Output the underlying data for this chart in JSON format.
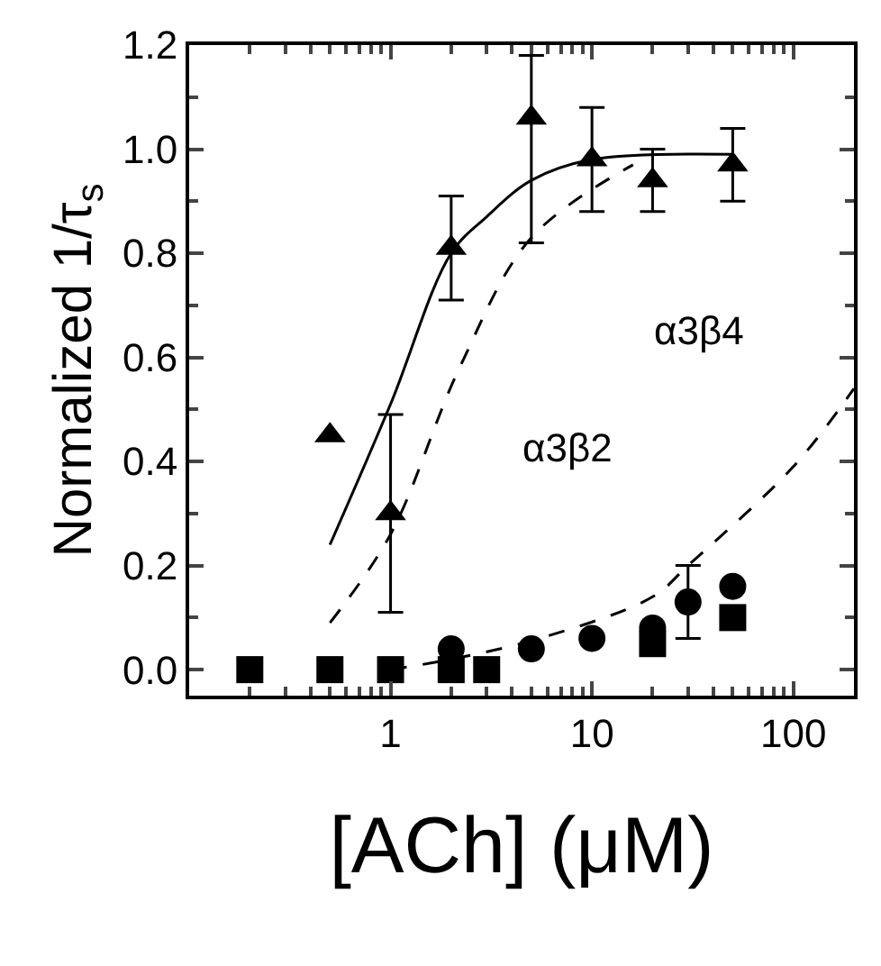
{
  "chart_data": {
    "type": "scatter",
    "xlabel": "[ACh] (μM)",
    "ylabel": "Normalized 1/τ$_{s}$",
    "log": "x",
    "xlim": [
      0.1,
      200
    ],
    "xticks": [
      1,
      10,
      100
    ],
    "ylim": [
      -0.05,
      1.2
    ],
    "yticks": [
      {
        "value": 0,
        "label": "0.0"
      },
      0.2,
      0.4,
      0.6,
      0.8,
      {
        "value": 1,
        "label": "1.0"
      },
      1.2
    ],
    "series": [
      {
        "type": "line",
        "color": "#000000",
        "marker": "none",
        "line_style": "solid",
        "x": [
          0.5,
          1,
          2,
          3,
          5,
          10,
          50
        ],
        "values": [
          0.24,
          0.51,
          0.8,
          0.87,
          0.94,
          0.98,
          0.99
        ]
      },
      {
        "type": "line",
        "color": "#000000",
        "marker": "none",
        "line_style": "dashed",
        "x": [
          0.5,
          1,
          2.2,
          5,
          16
        ],
        "values": [
          0.09,
          0.26,
          0.58,
          0.83,
          0.97
        ]
      },
      {
        "type": "line",
        "color": "#000000",
        "marker": "none",
        "line_style": "dashed",
        "x": [
          1,
          2,
          5.5,
          20,
          30,
          100,
          200
        ],
        "values": [
          0.0,
          0.02,
          0.06,
          0.14,
          0.2,
          0.39,
          0.54
        ]
      },
      {
        "color": "#000000",
        "marker": "triangle",
        "x": [
          0.5,
          1,
          2,
          5,
          10,
          20,
          50
        ],
        "values": [
          0.45,
          0.3,
          0.81,
          1.06,
          0.98,
          0.94,
          0.97
        ],
        "errors": [
          null,
          0.19,
          0.1,
          [
            0.82,
            1.18
          ],
          0.1,
          0.06,
          0.07
        ]
      },
      {
        "color": "#000000",
        "marker": "square",
        "x": [
          0.2,
          0.5,
          1,
          2,
          3,
          20,
          50
        ],
        "values": [
          0.0,
          0.0,
          0.0,
          0.0,
          0.0,
          0.05,
          0.1
        ]
      },
      {
        "color": "#000000",
        "marker": "circle",
        "x": [
          2,
          5,
          10,
          20,
          30,
          50
        ],
        "values": [
          0.04,
          0.04,
          0.06,
          0.08,
          0.13,
          0.16
        ],
        "errors": [
          null,
          null,
          null,
          null,
          0.07,
          null
        ]
      }
    ],
    "annotations": [
      "α3β2",
      "α3β4"
    ]
  }
}
